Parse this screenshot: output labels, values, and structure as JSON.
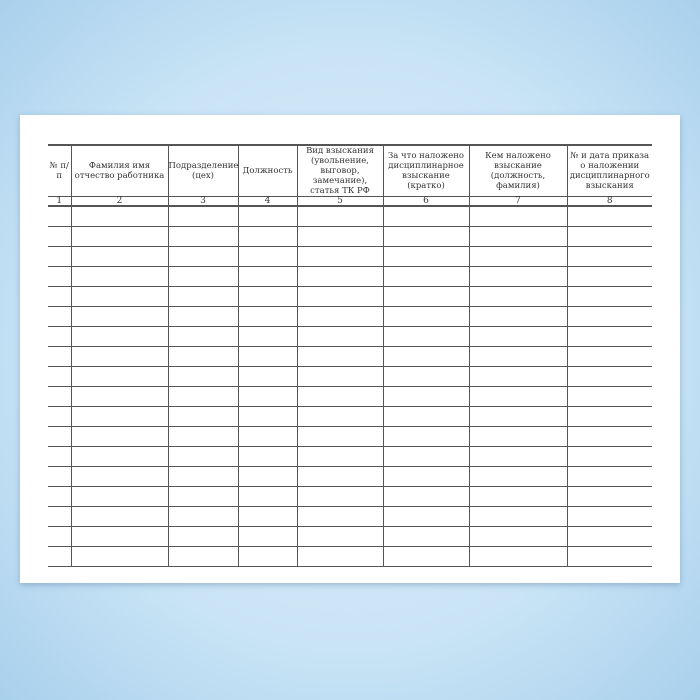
{
  "table": {
    "headers": [
      "№ п/п",
      "Фамилия имя отчество работника",
      "Подразделение (цех)",
      "Должность",
      "Вид взыскания (увольнение, выговор, замечание), статья ТК РФ",
      "За что наложено дисциплинарное взыскание (кратко)",
      "Кем наложено взыскание (должность, фамилия)",
      "№ и дата приказа о наложении дисциплинарного взыскания"
    ],
    "column_numbers": [
      "1",
      "2",
      "3",
      "4",
      "5",
      "6",
      "7",
      "8"
    ],
    "empty_rows": 18
  }
}
